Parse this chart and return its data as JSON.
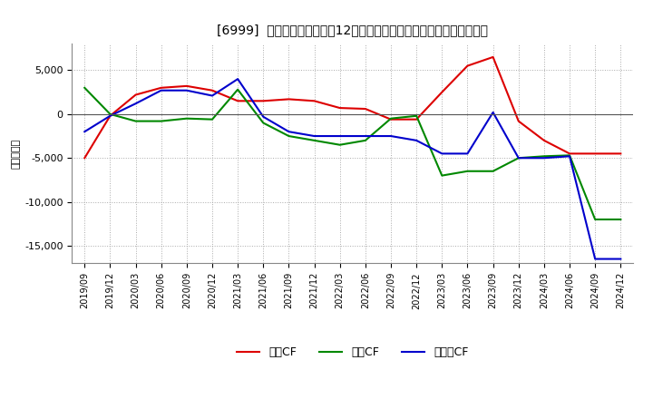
{
  "title": "[6999]  キャッシュフローの12か月移動合計の対前年同期増減額の推移",
  "ylabel": "（百万円）",
  "legend_operating": "営業CF",
  "legend_investing": "投資CF",
  "legend_free": "フリーCF",
  "bg_color": "#ffffff",
  "plot_bg_color": "#ffffff",
  "grid_color": "#aaaaaa",
  "x_labels": [
    "2019/09",
    "2019/12",
    "2020/03",
    "2020/06",
    "2020/09",
    "2020/12",
    "2021/03",
    "2021/06",
    "2021/09",
    "2021/12",
    "2022/03",
    "2022/06",
    "2022/09",
    "2022/12",
    "2023/03",
    "2023/06",
    "2023/09",
    "2023/12",
    "2024/03",
    "2024/06",
    "2024/09",
    "2024/12"
  ],
  "operating_cf": [
    -5000,
    -200,
    2200,
    3000,
    3200,
    2700,
    1500,
    1500,
    1700,
    1500,
    700,
    600,
    -600,
    -600,
    2500,
    5500,
    6500,
    -800,
    -3000,
    -4500,
    -4500,
    -4500
  ],
  "investing_cf": [
    3000,
    0,
    -800,
    -800,
    -500,
    -600,
    2800,
    -1000,
    -2500,
    -3000,
    -3500,
    -3000,
    -500,
    -200,
    -7000,
    -6500,
    -6500,
    -5000,
    -4800,
    -4700,
    -12000,
    -12000
  ],
  "free_cf": [
    -2000,
    -200,
    1200,
    2700,
    2700,
    2100,
    4000,
    -300,
    -2000,
    -2500,
    -2500,
    -2500,
    -2500,
    -3000,
    -4500,
    -4500,
    200,
    -5000,
    -5000,
    -4800,
    -16500,
    -16500
  ],
  "operating_color": "#dd0000",
  "investing_color": "#008800",
  "free_color": "#0000cc",
  "ylim": [
    -17000,
    8000
  ],
  "yticks": [
    -15000,
    -10000,
    -5000,
    0,
    5000
  ],
  "linewidth": 1.5
}
